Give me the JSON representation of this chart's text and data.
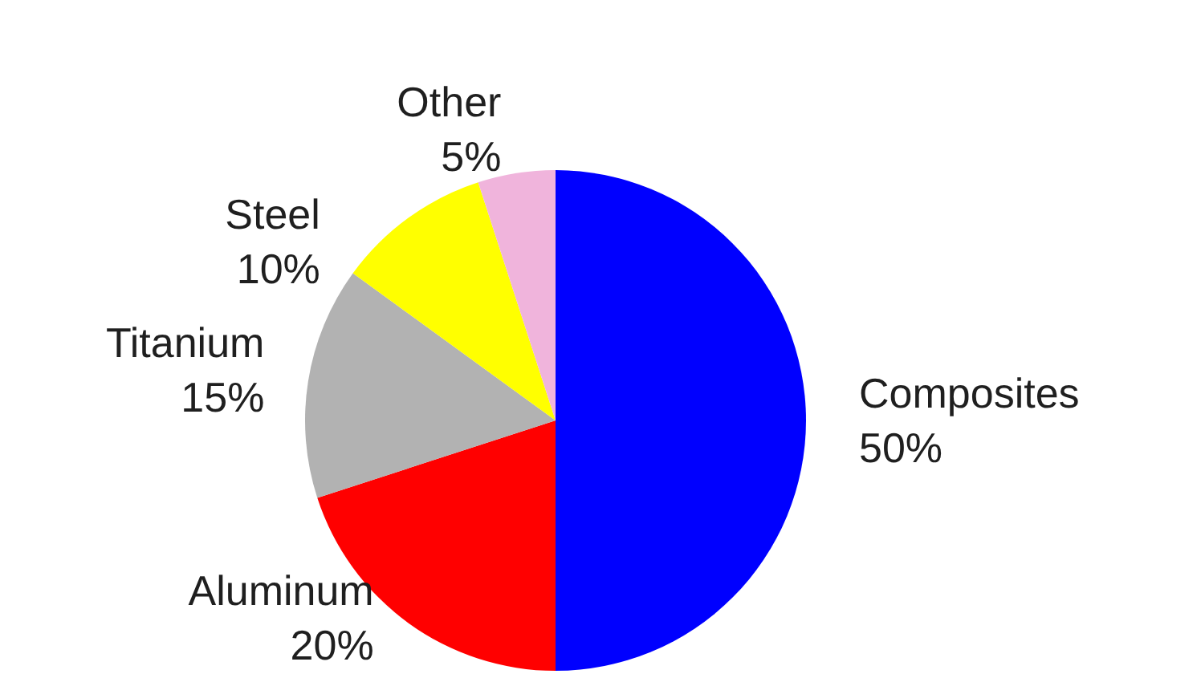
{
  "chart_data": {
    "type": "pie",
    "categories": [
      "Composites",
      "Aluminum",
      "Titanium",
      "Steel",
      "Other"
    ],
    "values": [
      50,
      20,
      15,
      10,
      5
    ],
    "colors": [
      "#0000ff",
      "#ff0000",
      "#b2b2b2",
      "#ffff00",
      "#f0b4dc"
    ],
    "value_labels": [
      "50%",
      "20%",
      "15%",
      "10%",
      "5%"
    ],
    "legend": false
  }
}
